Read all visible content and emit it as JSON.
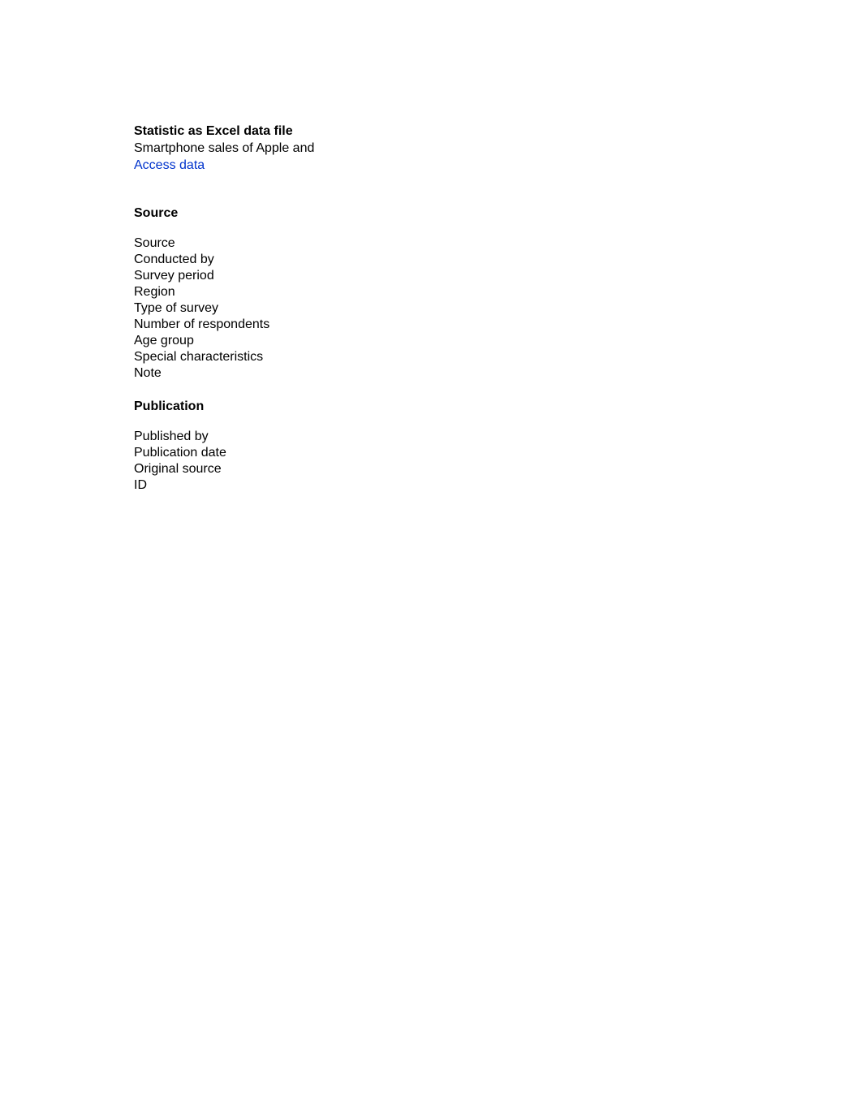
{
  "excel": {
    "title": "Statistic as Excel data file",
    "subtitle": "Smartphone sales of Apple and",
    "link_label": "Access data"
  },
  "source": {
    "heading": "Source",
    "items": [
      "Source",
      "Conducted by",
      "Survey period",
      "Region",
      "Type of survey",
      "Number of respondents",
      "Age group",
      "Special characteristics",
      "Note"
    ]
  },
  "publication": {
    "heading": "Publication",
    "items": [
      "Published by",
      "Publication date",
      "Original source",
      "ID"
    ]
  },
  "colors": {
    "text": "#000000",
    "link": "#0033cc",
    "background": "#ffffff"
  }
}
